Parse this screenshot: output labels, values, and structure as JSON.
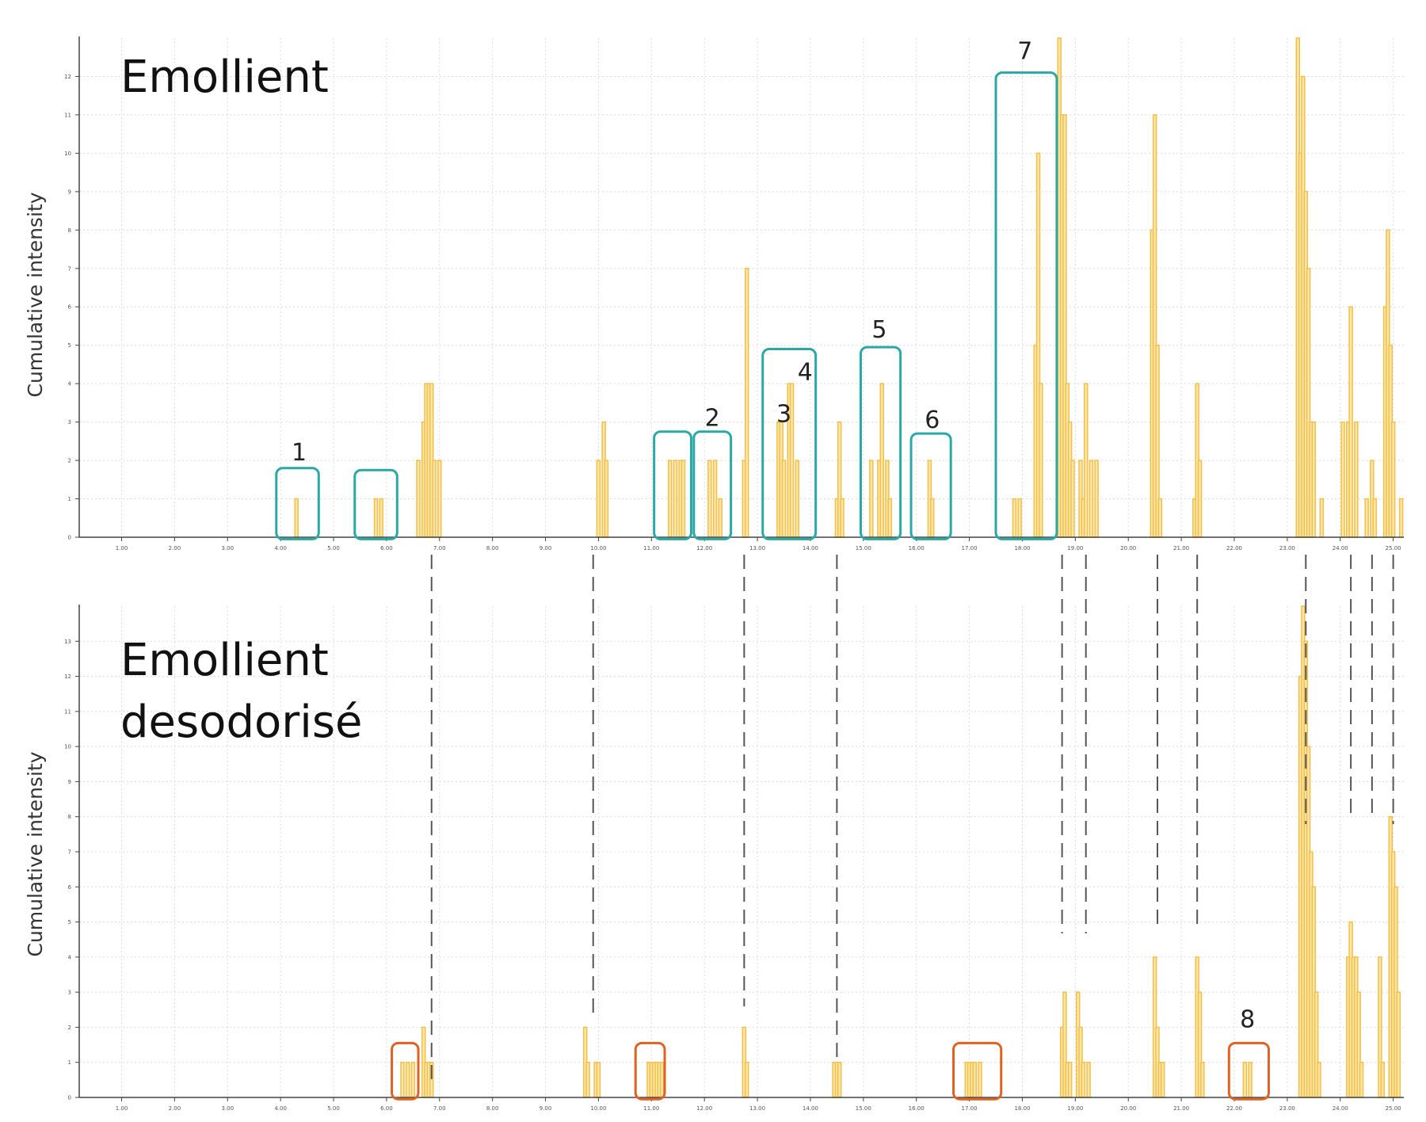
{
  "colors": {
    "bar_stroke": "#f2c04a",
    "bar_fill": "#fbe6a8",
    "grid": "#dcdcdc",
    "teal_box": "#2aa8a6",
    "orange_box": "#e06222",
    "guide": "#555555"
  },
  "chart_data": [
    {
      "type": "bar",
      "title": "Emollient",
      "ylabel": "Cumulative intensity",
      "xlim": [
        0.2,
        25.2
      ],
      "ylim": [
        0,
        13
      ],
      "x_ticks": [
        "1.00",
        "2.00",
        "3.00",
        "4.00",
        "5.00",
        "6.00",
        "7.00",
        "8.00",
        "9.00",
        "10.00",
        "11.00",
        "12.00",
        "13.00",
        "14.00",
        "15.00",
        "16.00",
        "17.00",
        "18.00",
        "19.00",
        "20.00",
        "21.00",
        "22.00",
        "23.00",
        "24.00",
        "25.00"
      ],
      "y_ticks": [
        "0",
        "1",
        "2",
        "3",
        "4",
        "5",
        "6",
        "7",
        "8",
        "9",
        "10",
        "11",
        "12"
      ],
      "grid": true,
      "x": [
        4.3,
        5.8,
        5.9,
        6.6,
        6.7,
        6.75,
        6.8,
        6.85,
        6.9,
        7.0,
        10.0,
        10.1,
        10.15,
        11.35,
        11.45,
        11.55,
        11.6,
        12.1,
        12.2,
        12.3,
        12.75,
        12.8,
        13.4,
        13.45,
        13.5,
        13.6,
        13.65,
        13.75,
        14.5,
        14.55,
        14.6,
        15.15,
        15.3,
        15.35,
        15.45,
        15.5,
        16.25,
        16.3,
        17.85,
        17.95,
        18.25,
        18.3,
        18.35,
        18.7,
        18.75,
        18.8,
        18.85,
        18.9,
        18.95,
        19.1,
        19.15,
        19.2,
        19.3,
        19.4,
        20.45,
        20.5,
        20.55,
        20.6,
        21.25,
        21.3,
        21.35,
        23.2,
        23.25,
        23.3,
        23.35,
        23.4,
        23.45,
        23.5,
        23.65,
        24.05,
        24.15,
        24.2,
        24.3,
        24.5,
        24.6,
        24.65,
        24.85,
        24.9,
        24.95,
        25.0,
        25.15
      ],
      "values": [
        1,
        1,
        1,
        2,
        3,
        4,
        4,
        4,
        2,
        2,
        2,
        3,
        2,
        2,
        2,
        2,
        2,
        2,
        2,
        1,
        2,
        7,
        3,
        3,
        2,
        4,
        4,
        2,
        1,
        3,
        1,
        2,
        2,
        4,
        2,
        1,
        2,
        1,
        1,
        1,
        5,
        10,
        4,
        13,
        11,
        11,
        4,
        3,
        2,
        2,
        1,
        4,
        2,
        2,
        8,
        11,
        5,
        1,
        1,
        4,
        2,
        13,
        10,
        12,
        9,
        7,
        3,
        3,
        1,
        3,
        3,
        6,
        3,
        1,
        2,
        1,
        6,
        8,
        5,
        3,
        1
      ],
      "annotations": [
        "1",
        "2",
        "3",
        "4",
        "5",
        "6",
        "7"
      ]
    },
    {
      "type": "bar",
      "title": "Emollient\ndesodorisé",
      "title_lines": [
        "Emollient",
        "desodorisé"
      ],
      "ylabel": "Cumulative intensity",
      "xlim": [
        0.2,
        25.2
      ],
      "ylim": [
        0,
        14
      ],
      "x_ticks": [
        "1.00",
        "2.00",
        "3.00",
        "4.00",
        "5.00",
        "6.00",
        "7.00",
        "8.00",
        "9.00",
        "10.00",
        "11.00",
        "12.00",
        "13.00",
        "14.00",
        "15.00",
        "16.00",
        "17.00",
        "18.00",
        "19.00",
        "20.00",
        "21.00",
        "22.00",
        "23.00",
        "24.00",
        "25.00"
      ],
      "y_ticks": [
        "0",
        "1",
        "2",
        "3",
        "4",
        "5",
        "6",
        "7",
        "8",
        "9",
        "10",
        "11",
        "12",
        "13"
      ],
      "grid": true,
      "x": [
        6.3,
        6.4,
        6.5,
        6.7,
        6.75,
        6.8,
        6.85,
        9.75,
        9.8,
        9.95,
        10.0,
        10.95,
        11.0,
        11.05,
        11.1,
        11.15,
        11.2,
        12.75,
        12.8,
        14.45,
        14.5,
        14.55,
        16.95,
        17.0,
        17.05,
        17.1,
        17.2,
        18.75,
        18.8,
        18.85,
        18.9,
        19.05,
        19.1,
        19.15,
        19.25,
        20.5,
        20.55,
        20.6,
        20.65,
        21.3,
        21.35,
        21.4,
        22.2,
        22.3,
        23.25,
        23.3,
        23.35,
        23.4,
        23.45,
        23.5,
        23.55,
        23.6,
        24.15,
        24.2,
        24.25,
        24.3,
        24.35,
        24.4,
        24.75,
        24.8,
        24.95,
        25.0,
        25.05,
        25.1
      ],
      "values": [
        1,
        1,
        1,
        2,
        1,
        1,
        1,
        2,
        1,
        1,
        1,
        1,
        1,
        1,
        1,
        1,
        1,
        2,
        1,
        1,
        1,
        1,
        1,
        1,
        1,
        1,
        1,
        2,
        3,
        1,
        1,
        3,
        2,
        1,
        1,
        4,
        2,
        1,
        1,
        4,
        3,
        1,
        1,
        1,
        12,
        14,
        13,
        10,
        7,
        6,
        3,
        1,
        4,
        5,
        4,
        4,
        3,
        1,
        4,
        1,
        8,
        7,
        6,
        3
      ],
      "annotations": [
        "8"
      ]
    }
  ]
}
